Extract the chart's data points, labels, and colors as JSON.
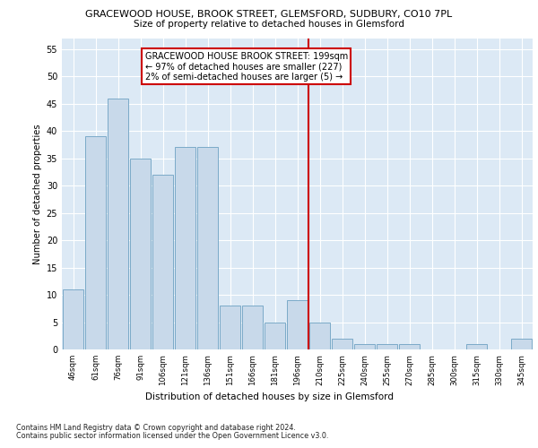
{
  "title": "GRACEWOOD HOUSE, BROOK STREET, GLEMSFORD, SUDBURY, CO10 7PL",
  "subtitle": "Size of property relative to detached houses in Glemsford",
  "xlabel": "Distribution of detached houses by size in Glemsford",
  "ylabel": "Number of detached properties",
  "categories": [
    "46sqm",
    "61sqm",
    "76sqm",
    "91sqm",
    "106sqm",
    "121sqm",
    "136sqm",
    "151sqm",
    "166sqm",
    "181sqm",
    "196sqm",
    "210sqm",
    "225sqm",
    "240sqm",
    "255sqm",
    "270sqm",
    "285sqm",
    "300sqm",
    "315sqm",
    "330sqm",
    "345sqm"
  ],
  "values": [
    11,
    39,
    46,
    35,
    32,
    37,
    37,
    8,
    8,
    5,
    9,
    5,
    2,
    1,
    1,
    1,
    0,
    0,
    1,
    0,
    2
  ],
  "bar_color": "#c8d9ea",
  "bar_edge_color": "#7baac8",
  "vline_x": 10.5,
  "vline_color": "#cc0000",
  "annotation_text": "GRACEWOOD HOUSE BROOK STREET: 199sqm\n← 97% of detached houses are smaller (227)\n2% of semi-detached houses are larger (5) →",
  "annotation_box_color": "#cc0000",
  "ylim": [
    0,
    57
  ],
  "yticks": [
    0,
    5,
    10,
    15,
    20,
    25,
    30,
    35,
    40,
    45,
    50,
    55
  ],
  "plot_bg_color": "#dce9f5",
  "footer_line1": "Contains HM Land Registry data © Crown copyright and database right 2024.",
  "footer_line2": "Contains public sector information licensed under the Open Government Licence v3.0."
}
